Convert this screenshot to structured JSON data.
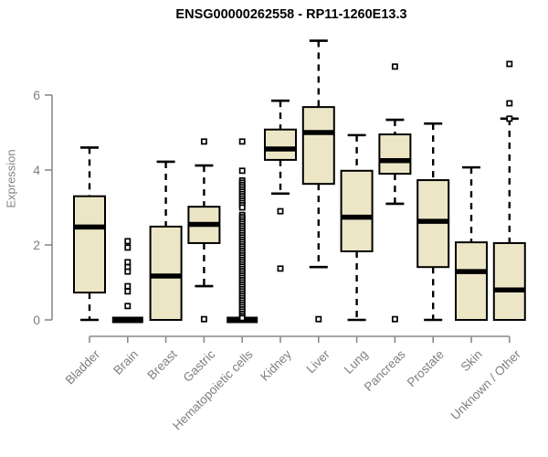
{
  "colors": {
    "background": "#ffffff",
    "box_fill": "#EDE6C6",
    "box_border": "#000000",
    "median": "#000000",
    "whisker": "#000000",
    "outlier_fill": "#ffffff",
    "outlier_border": "#000000",
    "axis_line": "#8a8a8a",
    "tick_label": "#7f7f7f",
    "title": "#000000"
  },
  "chart_data": {
    "type": "box",
    "title": "ENSG00000262558 - RP11-1260E13.3",
    "xlabel": "",
    "ylabel": "Expression",
    "yticks": [
      0,
      2,
      4,
      6
    ],
    "ylim": [
      0,
      7.6
    ],
    "grid": false,
    "legend": false,
    "categories": [
      "Bladder",
      "Brain",
      "Breast",
      "Gastric",
      "Hematopoietic cells",
      "Kidney",
      "Liver",
      "Lung",
      "Pancreas",
      "Prostate",
      "Skin",
      "Unknown / Other"
    ],
    "series": [
      {
        "name": "Bladder",
        "whisker_low": 0,
        "q1": 0.73,
        "median": 2.48,
        "q3": 3.3,
        "whisker_high": 4.6,
        "outliers": []
      },
      {
        "name": "Brain",
        "whisker_low": 0,
        "q1": 0,
        "median": 0,
        "q3": 0,
        "whisker_high": 0,
        "outliers": [
          2.1,
          1.93,
          1.54,
          1.41,
          1.29,
          0.9,
          0.76,
          0.37
        ]
      },
      {
        "name": "Breast",
        "whisker_low": 0,
        "q1": 0,
        "median": 1.17,
        "q3": 2.49,
        "whisker_high": 4.22,
        "outliers": []
      },
      {
        "name": "Gastric",
        "whisker_low": 0.9,
        "q1": 2.05,
        "median": 2.55,
        "q3": 3.02,
        "whisker_high": 4.12,
        "outliers": [
          4.76,
          0.02
        ]
      },
      {
        "name": "Hematopoietic cells",
        "whisker_low": 0,
        "q1": 0,
        "median": 0,
        "q3": 0,
        "whisker_high": 0,
        "outliers": [
          4.76,
          3.98,
          3.72,
          3.66,
          3.6,
          3.54,
          3.48,
          3.42,
          3.36,
          3.3,
          3.24,
          3.18,
          3.12,
          3.06,
          3.0,
          2.8,
          2.74,
          2.68,
          2.62,
          2.56,
          2.5,
          2.44,
          2.38,
          2.32,
          2.26,
          2.2,
          2.14,
          2.08,
          2.02,
          1.96,
          1.9,
          1.84,
          1.78,
          1.72,
          1.66,
          1.6,
          1.54,
          1.48,
          1.42,
          1.36,
          1.3,
          1.24,
          1.18,
          1.12,
          1.06,
          1.0,
          0.94,
          0.88,
          0.82,
          0.76,
          0.7,
          0.64,
          0.58,
          0.52,
          0.46,
          0.4,
          0.34,
          0.28,
          0.22,
          0.16,
          0.1,
          0.05
        ]
      },
      {
        "name": "Kidney",
        "whisker_low": 3.37,
        "q1": 4.27,
        "median": 4.56,
        "q3": 5.08,
        "whisker_high": 5.85,
        "outliers": [
          2.9,
          1.37
        ]
      },
      {
        "name": "Liver",
        "whisker_low": 1.41,
        "q1": 3.63,
        "median": 5.0,
        "q3": 5.68,
        "whisker_high": 7.45,
        "outliers": [
          0.02
        ]
      },
      {
        "name": "Lung",
        "whisker_low": 0,
        "q1": 1.83,
        "median": 2.74,
        "q3": 3.98,
        "whisker_high": 4.93,
        "outliers": []
      },
      {
        "name": "Pancreas",
        "whisker_low": 3.1,
        "q1": 3.9,
        "median": 4.25,
        "q3": 4.95,
        "whisker_high": 5.34,
        "outliers": [
          6.76,
          0.02
        ]
      },
      {
        "name": "Prostate",
        "whisker_low": 0,
        "q1": 1.41,
        "median": 2.63,
        "q3": 3.73,
        "whisker_high": 5.24,
        "outliers": []
      },
      {
        "name": "Skin",
        "whisker_low": 0,
        "q1": 0,
        "median": 1.29,
        "q3": 2.07,
        "whisker_high": 4.07,
        "outliers": []
      },
      {
        "name": "Unknown / Other",
        "whisker_low": 0,
        "q1": 0,
        "median": 0.8,
        "q3": 2.05,
        "whisker_high": 5.37,
        "outliers": [
          6.83,
          5.78,
          5.37
        ]
      }
    ]
  }
}
